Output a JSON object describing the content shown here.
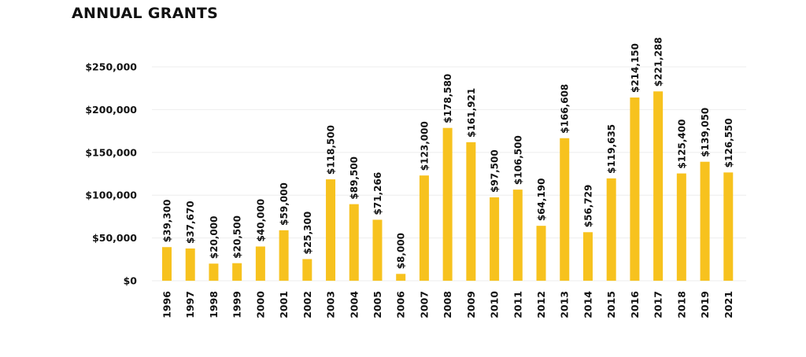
{
  "chart_data": {
    "type": "bar",
    "title": "ANNUAL GRANTS",
    "xlabel": "",
    "ylabel": "",
    "ylim": [
      0,
      250000
    ],
    "yticks": [
      {
        "value": 0,
        "label": "$0"
      },
      {
        "value": 50000,
        "label": "$50,000"
      },
      {
        "value": 100000,
        "label": "$100,000"
      },
      {
        "value": 150000,
        "label": "$150,000"
      },
      {
        "value": 200000,
        "label": "$200,000"
      },
      {
        "value": 250000,
        "label": "$250,000"
      }
    ],
    "grid": true,
    "bar_color": "#F7C21E",
    "categories": [
      "1996",
      "1997",
      "1998",
      "1999",
      "2000",
      "2001",
      "2002",
      "2003",
      "2004",
      "2005",
      "2006",
      "2007",
      "2008",
      "2009",
      "2010",
      "2011",
      "2012",
      "2013",
      "2014",
      "2015",
      "2016",
      "2017",
      "2018",
      "2019",
      "2021"
    ],
    "values": [
      39300,
      37670,
      20000,
      20500,
      40000,
      59000,
      25300,
      118500,
      89500,
      71266,
      8000,
      123000,
      178580,
      161921,
      97500,
      106500,
      64190,
      166608,
      56729,
      119635,
      214150,
      221288,
      125400,
      139050,
      126550
    ],
    "data_labels": [
      "$39,300",
      "$37,670",
      "$20,000",
      "$20,500",
      "$40,000",
      "$59,000",
      "$25,300",
      "$118,500",
      "$89,500",
      "$71,266",
      "$8,000",
      "$123,000",
      "$178,580",
      "$161,921",
      "$97,500",
      "$106,500",
      "$64,190",
      "$166,608",
      "$56,729",
      "$119,635",
      "$214,150",
      "$221,288",
      "$125,400",
      "$139,050",
      "$126,550"
    ]
  }
}
